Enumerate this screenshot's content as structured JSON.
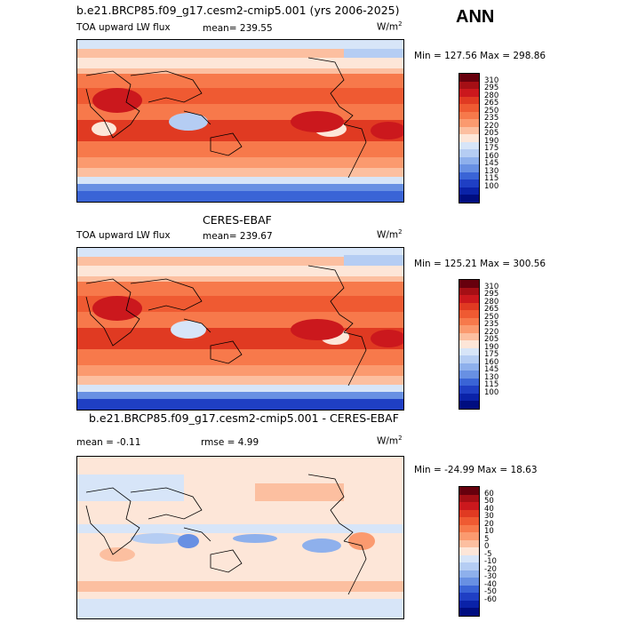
{
  "season": "ANN",
  "panels": [
    {
      "title": "b.e21.BRCP85.f09_g17.cesm2-cmip5.001 (yrs 2006-2025)",
      "left_label": "TOA upward LW flux",
      "mean_label": "mean= 239.55",
      "units": "W/m",
      "units_sup": "2",
      "minmax": "Min = 127.56 Max = 298.86",
      "colorbar": {
        "labels": [
          "310",
          "295",
          "280",
          "265",
          "250",
          "235",
          "220",
          "205",
          "190",
          "175",
          "160",
          "145",
          "130",
          "115",
          "100"
        ],
        "colors": [
          "#67000d",
          "#a50f15",
          "#cb181d",
          "#e03a22",
          "#ef5a32",
          "#f7794b",
          "#fb9a6f",
          "#fcbfa0",
          "#fde6d8",
          "#d7e5f8",
          "#b5cdf3",
          "#8eb0ec",
          "#6890e3",
          "#3a64d6",
          "#1f3fc4",
          "#0a22a8",
          "#000d80"
        ]
      }
    },
    {
      "title": "CERES-EBAF",
      "left_label": "TOA upward LW flux",
      "mean_label": "mean= 239.67",
      "units": "W/m",
      "units_sup": "2",
      "minmax": "Min = 125.21 Max = 300.56",
      "colorbar": {
        "labels": [
          "310",
          "295",
          "280",
          "265",
          "250",
          "235",
          "220",
          "205",
          "190",
          "175",
          "160",
          "145",
          "130",
          "115",
          "100"
        ],
        "colors": [
          "#67000d",
          "#a50f15",
          "#cb181d",
          "#e03a22",
          "#ef5a32",
          "#f7794b",
          "#fb9a6f",
          "#fcbfa0",
          "#fde6d8",
          "#d7e5f8",
          "#b5cdf3",
          "#8eb0ec",
          "#6890e3",
          "#3a64d6",
          "#1f3fc4",
          "#0a22a8",
          "#000d80"
        ]
      }
    },
    {
      "title": "b.e21.BRCP85.f09_g17.cesm2-cmip5.001 - CERES-EBAF",
      "left_label": "mean =   -0.11",
      "mean_label": "rmse =    4.99",
      "units": "W/m",
      "units_sup": "2",
      "minmax": "Min = -24.99 Max =  18.63",
      "colorbar": {
        "labels": [
          "60",
          "50",
          "40",
          "30",
          "20",
          "10",
          "5",
          "0",
          "-5",
          "-10",
          "-20",
          "-30",
          "-40",
          "-50",
          "-60"
        ],
        "colors": [
          "#67000d",
          "#a50f15",
          "#cb181d",
          "#e03a22",
          "#ef5a32",
          "#f7794b",
          "#fb9a6f",
          "#fcbfa0",
          "#fde6d8",
          "#d7e5f8",
          "#b5cdf3",
          "#8eb0ec",
          "#6890e3",
          "#3a64d6",
          "#1f3fc4",
          "#0a22a8",
          "#000d80"
        ]
      }
    }
  ]
}
